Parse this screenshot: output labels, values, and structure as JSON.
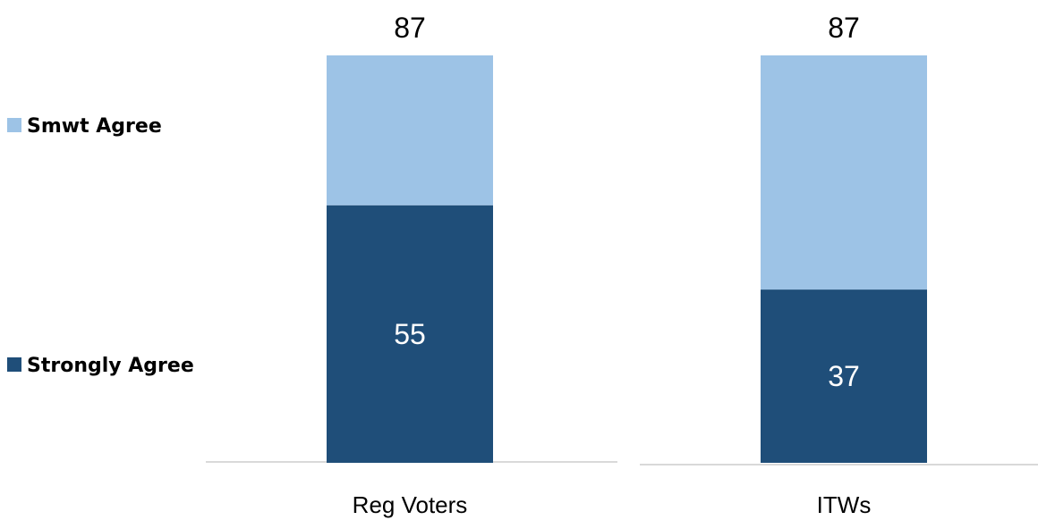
{
  "chart_data": {
    "type": "bar",
    "stacked": true,
    "categories": [
      "Reg Voters",
      "ITWs"
    ],
    "series": [
      {
        "name": "Strongly Agree",
        "values": [
          55,
          37
        ],
        "color": "#1f4e79",
        "labels": [
          "55",
          "37"
        ]
      },
      {
        "name": "Smwt Agree",
        "values": [
          32,
          50
        ],
        "color": "#9dc3e6"
      }
    ],
    "totals": [
      87,
      87
    ],
    "total_labels": [
      "87",
      "87"
    ],
    "legend_position": "left",
    "grid": false,
    "ylim": [
      0,
      87
    ]
  }
}
